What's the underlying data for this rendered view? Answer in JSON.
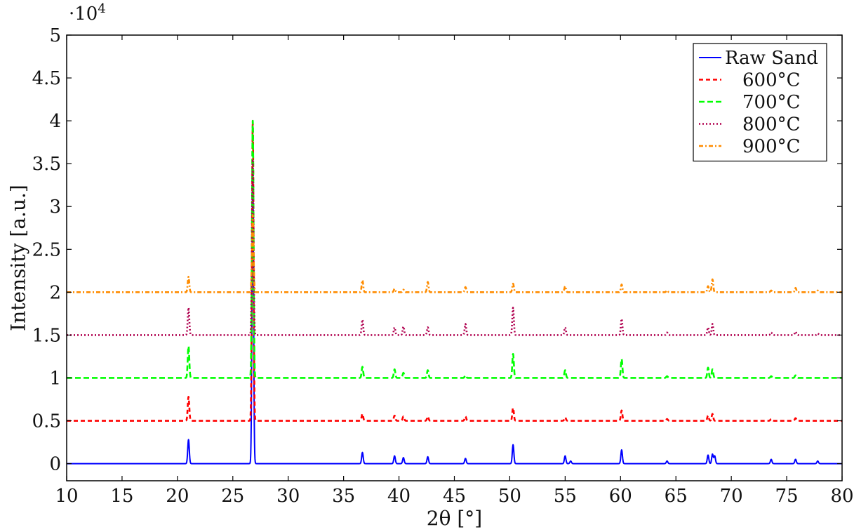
{
  "chart_data": {
    "type": "line",
    "title": "",
    "xlabel": "2θ [°]",
    "ylabel": "Intensity [a.u.]",
    "y_multiplier": {
      "base": "·10",
      "exp": "4"
    },
    "xlim": [
      10,
      80
    ],
    "ylim": [
      -0.2,
      5
    ],
    "x_ticks": [
      10,
      15,
      20,
      25,
      30,
      35,
      40,
      45,
      50,
      55,
      60,
      65,
      70,
      75,
      80
    ],
    "y_ticks": [
      0,
      0.5,
      1,
      1.5,
      2,
      2.5,
      3,
      3.5,
      4,
      4.5,
      5
    ],
    "y_tick_labels": [
      "0",
      "0.5",
      "1",
      "1.5",
      "2",
      "2.5",
      "3",
      "3.5",
      "4",
      "4.5",
      "5"
    ],
    "grid": false,
    "legend_position": "top-right",
    "series": [
      {
        "name": "Raw Sand",
        "color": "#0000ff",
        "dash": "solid",
        "offset": 0,
        "peaks": [
          [
            21.0,
            0.28
          ],
          [
            26.8,
            3.4
          ],
          [
            36.7,
            0.13
          ],
          [
            39.6,
            0.09
          ],
          [
            40.4,
            0.07
          ],
          [
            42.6,
            0.08
          ],
          [
            46.0,
            0.06
          ],
          [
            50.3,
            0.22
          ],
          [
            55.0,
            0.09
          ],
          [
            55.5,
            0.03
          ],
          [
            60.1,
            0.16
          ],
          [
            64.2,
            0.03
          ],
          [
            67.9,
            0.1
          ],
          [
            68.3,
            0.11
          ],
          [
            68.5,
            0.09
          ],
          [
            73.6,
            0.05
          ],
          [
            75.8,
            0.05
          ],
          [
            77.8,
            0.03
          ]
        ]
      },
      {
        "name": "600°C",
        "color": "#ff0000",
        "dash": "6,4",
        "offset": 0.5,
        "peaks": [
          [
            21.0,
            0.28
          ],
          [
            26.8,
            3.5
          ],
          [
            36.7,
            0.08
          ],
          [
            39.6,
            0.06
          ],
          [
            40.4,
            0.05
          ],
          [
            42.6,
            0.05
          ],
          [
            46.0,
            0.05
          ],
          [
            50.3,
            0.15
          ],
          [
            55.0,
            0.04
          ],
          [
            60.1,
            0.12
          ],
          [
            64.2,
            0.02
          ],
          [
            67.9,
            0.06
          ],
          [
            68.3,
            0.08
          ],
          [
            73.6,
            0.02
          ],
          [
            75.8,
            0.03
          ]
        ]
      },
      {
        "name": "700°C",
        "color": "#00ff00",
        "dash": "8,4",
        "offset": 1.0,
        "peaks": [
          [
            21.0,
            0.37
          ],
          [
            26.8,
            3.0
          ],
          [
            36.7,
            0.13
          ],
          [
            39.6,
            0.1
          ],
          [
            40.4,
            0.06
          ],
          [
            42.6,
            0.09
          ],
          [
            46.0,
            0.03
          ],
          [
            50.3,
            0.28
          ],
          [
            55.0,
            0.09
          ],
          [
            60.1,
            0.22
          ],
          [
            64.2,
            0.02
          ],
          [
            67.9,
            0.12
          ],
          [
            68.3,
            0.1
          ],
          [
            73.6,
            0.02
          ],
          [
            75.8,
            0.03
          ]
        ]
      },
      {
        "name": "800°C",
        "color": "#b0004f",
        "dash": "2,3",
        "offset": 1.5,
        "peaks": [
          [
            21.0,
            0.32
          ],
          [
            26.8,
            2.05
          ],
          [
            36.7,
            0.18
          ],
          [
            39.6,
            0.09
          ],
          [
            40.4,
            0.1
          ],
          [
            42.6,
            0.09
          ],
          [
            46.0,
            0.13
          ],
          [
            50.3,
            0.32
          ],
          [
            55.0,
            0.09
          ],
          [
            60.1,
            0.19
          ],
          [
            64.2,
            0.03
          ],
          [
            67.9,
            0.09
          ],
          [
            68.3,
            0.13
          ],
          [
            73.6,
            0.03
          ],
          [
            75.8,
            0.04
          ],
          [
            77.8,
            0.02
          ]
        ]
      },
      {
        "name": "900°C",
        "color": "#ff8c00",
        "dash": "6,3,2,3",
        "offset": 2.0,
        "peaks": [
          [
            21.0,
            0.18
          ],
          [
            26.8,
            0.9
          ],
          [
            36.7,
            0.14
          ],
          [
            39.6,
            0.04
          ],
          [
            40.4,
            0.03
          ],
          [
            42.6,
            0.12
          ],
          [
            46.0,
            0.06
          ],
          [
            50.3,
            0.1
          ],
          [
            55.0,
            0.07
          ],
          [
            60.1,
            0.09
          ],
          [
            64.2,
            0.02
          ],
          [
            67.9,
            0.07
          ],
          [
            68.3,
            0.15
          ],
          [
            73.6,
            0.02
          ],
          [
            75.8,
            0.05
          ],
          [
            77.8,
            0.02
          ]
        ]
      }
    ]
  }
}
